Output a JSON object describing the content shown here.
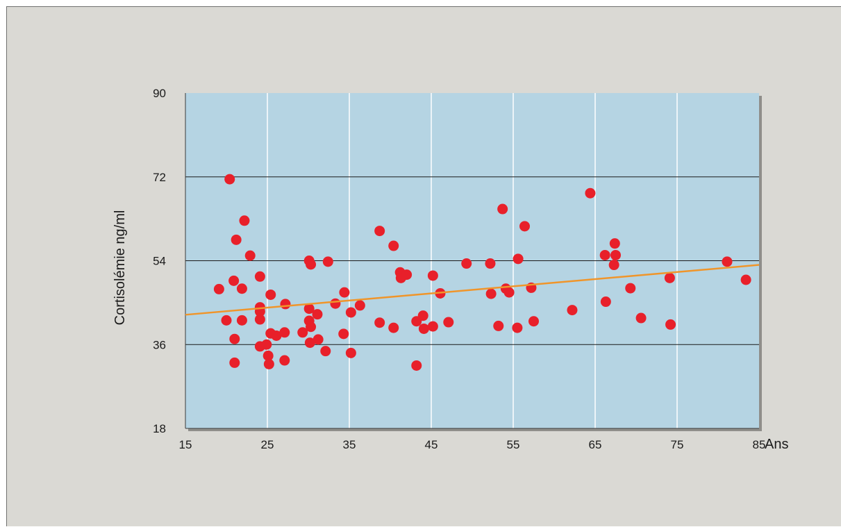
{
  "chart_data": {
    "type": "scatter",
    "title": "",
    "xlabel": "Ans",
    "ylabel": "Cortisolémie ng/ml",
    "xlim": [
      15,
      85
    ],
    "ylim": [
      18,
      90
    ],
    "x_ticks": [
      15,
      25,
      35,
      45,
      55,
      65,
      75,
      85
    ],
    "y_ticks": [
      18,
      36,
      54,
      72,
      90
    ],
    "x_tick_labels": [
      "15",
      "25",
      "35",
      "45",
      "55",
      "65",
      "75",
      "85"
    ],
    "y_tick_labels": [
      "18",
      "36",
      "54",
      "72",
      "90"
    ],
    "grid": true,
    "colors": {
      "background": "#dad9d4",
      "plot_area": "#b5d4e3",
      "points": "#e8202a",
      "trend_line": "#f0952a",
      "grid_vertical": "#ffffff",
      "grid_horizontal": "#1a1a1a"
    },
    "series": [
      {
        "points": [
          [
            19.1,
            47.9
          ],
          [
            20.4,
            71.5
          ],
          [
            20.9,
            49.7
          ],
          [
            21.2,
            58.5
          ],
          [
            21.9,
            48.0
          ],
          [
            22.2,
            62.6
          ],
          [
            22.9,
            55.1
          ],
          [
            20.0,
            41.2
          ],
          [
            21.0,
            37.2
          ],
          [
            21.0,
            32.1
          ],
          [
            21.9,
            41.2
          ],
          [
            24.1,
            50.6
          ],
          [
            24.1,
            44.0
          ],
          [
            24.1,
            43.1
          ],
          [
            24.1,
            41.4
          ],
          [
            24.1,
            35.6
          ],
          [
            24.9,
            36.0
          ],
          [
            25.1,
            33.6
          ],
          [
            25.2,
            31.8
          ],
          [
            25.4,
            46.7
          ],
          [
            25.4,
            38.4
          ],
          [
            26.1,
            37.9
          ],
          [
            27.1,
            38.6
          ],
          [
            27.1,
            32.6
          ],
          [
            27.2,
            44.7
          ],
          [
            29.3,
            38.6
          ],
          [
            30.1,
            54.0
          ],
          [
            30.3,
            53.2
          ],
          [
            30.1,
            43.7
          ],
          [
            30.1,
            41.1
          ],
          [
            30.3,
            39.8
          ],
          [
            30.2,
            36.4
          ],
          [
            31.1,
            42.5
          ],
          [
            31.2,
            37.1
          ],
          [
            32.1,
            34.6
          ],
          [
            32.4,
            53.8
          ],
          [
            33.3,
            44.8
          ],
          [
            34.3,
            38.3
          ],
          [
            34.4,
            47.2
          ],
          [
            35.2,
            42.9
          ],
          [
            35.2,
            34.2
          ],
          [
            36.3,
            44.4
          ],
          [
            38.7,
            40.7
          ],
          [
            38.7,
            60.4
          ],
          [
            40.4,
            57.2
          ],
          [
            40.4,
            39.6
          ],
          [
            41.2,
            51.5
          ],
          [
            41.3,
            50.3
          ],
          [
            42.0,
            51.0
          ],
          [
            43.2,
            31.5
          ],
          [
            43.2,
            41.0
          ],
          [
            44.0,
            42.2
          ],
          [
            44.1,
            39.4
          ],
          [
            45.2,
            39.9
          ],
          [
            45.2,
            50.8
          ],
          [
            46.1,
            47.0
          ],
          [
            47.1,
            40.8
          ],
          [
            49.3,
            53.4
          ],
          [
            52.2,
            53.4
          ],
          [
            52.3,
            46.9
          ],
          [
            53.2,
            40.0
          ],
          [
            53.7,
            65.1
          ],
          [
            54.1,
            48.0
          ],
          [
            54.5,
            47.2
          ],
          [
            55.5,
            39.6
          ],
          [
            55.6,
            54.4
          ],
          [
            56.4,
            61.4
          ],
          [
            57.2,
            48.2
          ],
          [
            57.5,
            41.0
          ],
          [
            62.2,
            43.4
          ],
          [
            64.4,
            68.5
          ],
          [
            66.2,
            55.2
          ],
          [
            66.3,
            45.2
          ],
          [
            67.3,
            53.1
          ],
          [
            67.4,
            57.7
          ],
          [
            67.5,
            55.2
          ],
          [
            69.3,
            48.1
          ],
          [
            70.6,
            41.7
          ],
          [
            74.1,
            50.3
          ],
          [
            74.2,
            40.3
          ],
          [
            81.1,
            53.8
          ],
          [
            83.4,
            49.9
          ]
        ]
      }
    ],
    "trend_line": {
      "x": [
        15,
        85
      ],
      "y": [
        42.4,
        53.1
      ]
    }
  }
}
